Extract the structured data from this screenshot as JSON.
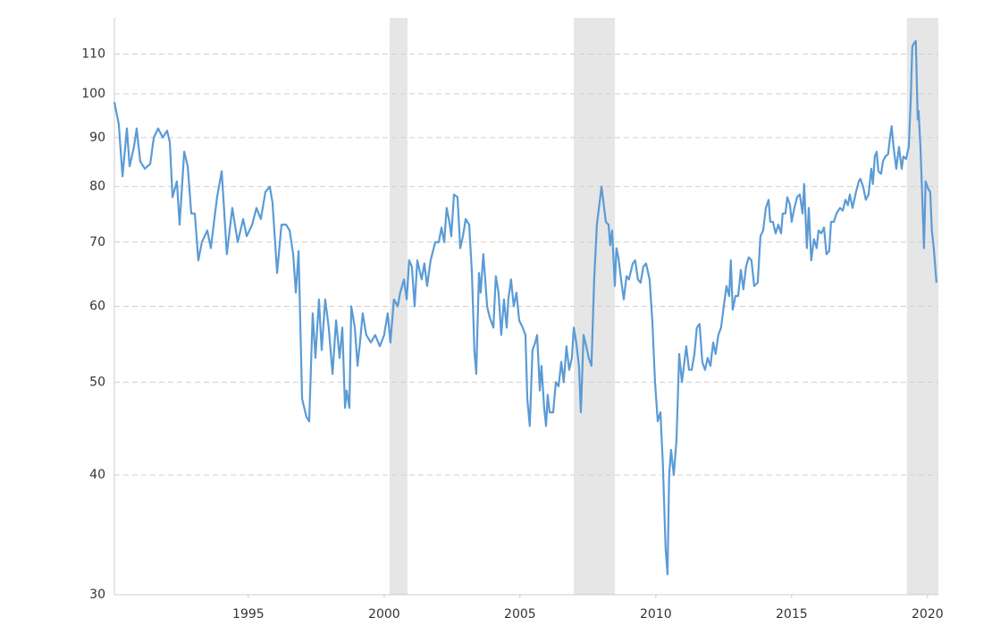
{
  "chart_data": {
    "type": "line",
    "yscale": "log",
    "grid": true,
    "color": "#5b9bd5",
    "shade_color": "#e6e6e6",
    "xlim": [
      1990.07,
      2020.4
    ],
    "xticks": [
      1995,
      2000,
      2005,
      2010,
      2015,
      2020
    ],
    "ylim": [
      30,
      120
    ],
    "yticks": [
      30,
      40,
      50,
      60,
      70,
      80,
      90,
      100,
      110
    ],
    "shaded_ranges": [
      [
        2000.2,
        2000.86
      ],
      [
        2006.98,
        2008.49
      ],
      [
        2019.24,
        2020.4
      ]
    ],
    "x": [
      1990.07,
      1990.23,
      1990.37,
      1990.53,
      1990.63,
      1990.79,
      1990.89,
      1991.02,
      1991.19,
      1991.39,
      1991.52,
      1991.68,
      1991.85,
      1992.01,
      1992.11,
      1992.21,
      1992.37,
      1992.47,
      1992.64,
      1992.77,
      1992.9,
      1993.03,
      1993.16,
      1993.29,
      1993.49,
      1993.62,
      1993.75,
      1993.85,
      1994.02,
      1994.21,
      1994.41,
      1994.61,
      1994.81,
      1994.94,
      1995.14,
      1995.3,
      1995.46,
      1995.63,
      1995.79,
      1995.89,
      1996.06,
      1996.22,
      1996.39,
      1996.52,
      1996.65,
      1996.75,
      1996.85,
      1996.98,
      1997.14,
      1997.24,
      1997.37,
      1997.47,
      1997.6,
      1997.7,
      1997.83,
      1997.96,
      1998.1,
      1998.23,
      1998.36,
      1998.46,
      1998.56,
      1998.62,
      1998.72,
      1998.79,
      1998.92,
      1999.02,
      1999.11,
      1999.21,
      1999.34,
      1999.51,
      1999.67,
      1999.84,
      2000.0,
      2000.13,
      2000.23,
      2000.36,
      2000.5,
      2000.59,
      2000.73,
      2000.83,
      2000.92,
      2001.02,
      2001.12,
      2001.22,
      2001.38,
      2001.48,
      2001.58,
      2001.71,
      2001.88,
      2002.01,
      2002.11,
      2002.21,
      2002.3,
      2002.4,
      2002.47,
      2002.57,
      2002.7,
      2002.8,
      2002.9,
      2003.0,
      2003.13,
      2003.23,
      2003.32,
      2003.39,
      2003.49,
      2003.55,
      2003.65,
      2003.72,
      2003.79,
      2003.88,
      2004.02,
      2004.11,
      2004.21,
      2004.31,
      2004.41,
      2004.51,
      2004.57,
      2004.67,
      2004.77,
      2004.87,
      2004.97,
      2005.1,
      2005.2,
      2005.27,
      2005.36,
      2005.46,
      2005.56,
      2005.63,
      2005.73,
      2005.79,
      2005.89,
      2005.96,
      2006.02,
      2006.09,
      2006.22,
      2006.32,
      2006.42,
      2006.52,
      2006.61,
      2006.71,
      2006.81,
      2006.91,
      2006.98,
      2007.07,
      2007.17,
      2007.24,
      2007.34,
      2007.44,
      2007.53,
      2007.63,
      2007.73,
      2007.83,
      2007.93,
      2008.0,
      2008.06,
      2008.16,
      2008.26,
      2008.32,
      2008.39,
      2008.49,
      2008.55,
      2008.62,
      2008.72,
      2008.82,
      2008.92,
      2009.01,
      2009.15,
      2009.24,
      2009.34,
      2009.44,
      2009.54,
      2009.64,
      2009.77,
      2009.87,
      2009.97,
      2010.07,
      2010.17,
      2010.26,
      2010.36,
      2010.43,
      2010.49,
      2010.56,
      2010.66,
      2010.76,
      2010.86,
      2010.96,
      2011.05,
      2011.12,
      2011.22,
      2011.32,
      2011.42,
      2011.51,
      2011.61,
      2011.71,
      2011.81,
      2011.91,
      2012.01,
      2012.11,
      2012.2,
      2012.3,
      2012.4,
      2012.5,
      2012.6,
      2012.7,
      2012.76,
      2012.83,
      2012.93,
      2013.03,
      2013.13,
      2013.22,
      2013.32,
      2013.42,
      2013.52,
      2013.62,
      2013.75,
      2013.85,
      2013.95,
      2014.05,
      2014.15,
      2014.21,
      2014.31,
      2014.41,
      2014.51,
      2014.61,
      2014.67,
      2014.77,
      2014.84,
      2014.94,
      2015.0,
      2015.1,
      2015.2,
      2015.3,
      2015.4,
      2015.46,
      2015.56,
      2015.63,
      2015.72,
      2015.82,
      2015.92,
      2015.99,
      2016.09,
      2016.19,
      2016.28,
      2016.38,
      2016.45,
      2016.55,
      2016.65,
      2016.78,
      2016.88,
      2016.98,
      2017.07,
      2017.14,
      2017.24,
      2017.37,
      2017.47,
      2017.53,
      2017.63,
      2017.73,
      2017.83,
      2017.93,
      2017.99,
      2018.06,
      2018.13,
      2018.19,
      2018.29,
      2018.36,
      2018.45,
      2018.55,
      2018.62,
      2018.68,
      2018.75,
      2018.85,
      2018.95,
      2019.05,
      2019.11,
      2019.21,
      2019.31,
      2019.38,
      2019.44,
      2019.51,
      2019.57,
      2019.64,
      2019.67,
      2019.74,
      2019.8,
      2019.87,
      2019.93,
      2020.03,
      2020.1,
      2020.16,
      2020.23,
      2020.33
    ],
    "values": [
      98,
      93,
      82,
      92,
      84,
      88,
      92,
      85,
      83.5,
      84.5,
      90,
      92,
      90,
      91.5,
      89,
      78,
      81,
      73,
      87,
      84,
      75,
      75,
      67,
      70,
      72,
      69,
      74,
      78,
      83,
      68,
      76,
      70,
      74,
      71,
      73,
      76,
      74,
      79,
      80,
      77,
      65,
      73,
      73,
      72,
      68,
      62,
      68.5,
      48,
      46,
      45.5,
      59,
      53,
      61,
      54,
      61,
      57,
      51,
      58,
      53,
      57,
      47,
      49,
      47,
      60,
      57,
      52,
      55,
      59,
      56,
      55,
      56,
      54.5,
      56,
      59,
      55,
      61,
      60,
      62,
      64,
      61,
      67,
      66,
      60,
      67,
      64,
      66.5,
      63,
      67,
      70,
      70,
      72.5,
      70,
      76,
      73.5,
      71,
      78.5,
      78,
      69,
      71,
      74,
      73,
      65,
      54,
      51,
      65,
      62,
      68,
      64,
      60,
      58.5,
      57,
      64.5,
      62,
      56,
      61,
      57,
      61,
      64,
      60,
      62,
      58,
      57,
      56,
      48,
      45,
      54,
      55,
      56,
      49,
      52,
      47,
      45,
      48.5,
      46.5,
      46.5,
      50,
      49.5,
      52.5,
      50,
      54.5,
      51.5,
      53,
      57,
      55,
      52,
      46.5,
      56,
      54.5,
      53,
      52,
      64,
      73,
      77,
      80,
      77.5,
      73.5,
      73,
      69.5,
      72,
      63,
      69,
      67.5,
      64,
      61,
      64.5,
      64,
      66.5,
      67,
      64,
      63.5,
      66,
      66.5,
      64,
      58,
      50,
      45.5,
      46.5,
      41,
      33.5,
      31.5,
      40,
      42.5,
      40,
      43.5,
      53.5,
      50,
      52.5,
      54.5,
      51.5,
      51.5,
      53.5,
      57,
      57.5,
      52.5,
      51.5,
      53,
      52,
      55,
      53.5,
      56,
      57,
      60,
      63,
      61.5,
      67,
      59.5,
      61.5,
      61.5,
      65.5,
      62.5,
      66,
      67.5,
      67,
      63,
      63.5,
      71,
      72,
      76,
      77.5,
      73.5,
      73.5,
      71.5,
      73,
      71.5,
      75,
      75,
      78,
      76.5,
      73.5,
      76,
      78,
      78.5,
      75,
      80.5,
      69,
      76,
      67,
      70.5,
      69,
      72,
      71.5,
      72.5,
      68,
      68.5,
      73.5,
      73.5,
      75,
      76,
      75.5,
      77.5,
      76.5,
      78.5,
      76,
      79,
      81,
      81.5,
      80,
      77.5,
      78.5,
      83.5,
      80.5,
      86,
      87,
      83,
      82.5,
      85,
      86,
      86.5,
      90,
      92.5,
      88,
      83.5,
      88,
      83.5,
      86,
      85.5,
      88,
      98,
      112,
      113,
      113.5,
      94,
      96,
      88,
      79,
      69,
      81,
      79.5,
      79,
      72,
      69,
      63.5
    ]
  }
}
